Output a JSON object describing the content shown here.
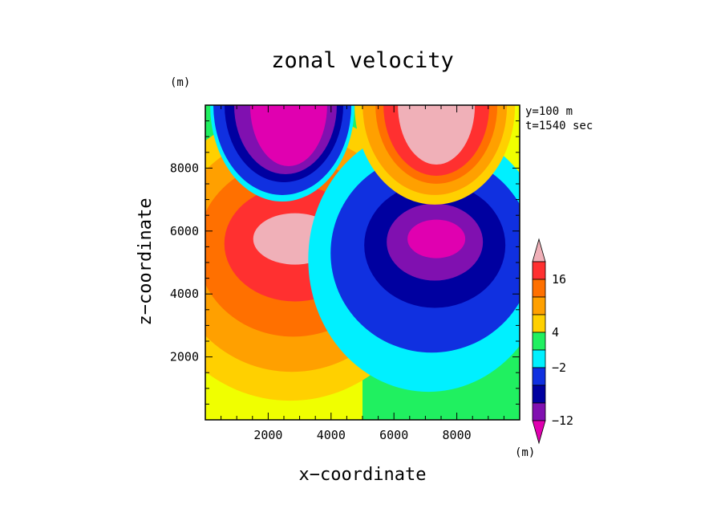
{
  "chart_data": {
    "type": "heatmap",
    "title": "zonal velocity",
    "xlabel": "x−coordinate",
    "ylabel": "z−coordinate",
    "xunit": "(m)",
    "yunit": "(m)",
    "xlim": [
      0,
      10000
    ],
    "ylim": [
      0,
      10000
    ],
    "xticks": [
      2000,
      4000,
      6000,
      8000
    ],
    "xtick_labels": [
      "2000",
      "4000",
      "6000",
      "8000"
    ],
    "yticks": [
      2000,
      4000,
      6000,
      8000
    ],
    "ytick_labels": [
      "2000",
      "4000",
      "6000",
      "8000"
    ],
    "annotations": [
      "y=100  m",
      "t=1540  sec"
    ],
    "colorbar": {
      "unit": "(m)",
      "levels": [
        {
          "color": "#f0b0b8"
        },
        {
          "color": "#ff3030"
        },
        {
          "color": "#ff7000"
        },
        {
          "color": "#ffa000"
        },
        {
          "color": "#ffd000"
        },
        {
          "color": "#20f060"
        },
        {
          "color": "#00f0ff"
        },
        {
          "color": "#1030e0"
        },
        {
          "color": "#0000a0"
        },
        {
          "color": "#8010b0"
        },
        {
          "color": "#e000b0"
        }
      ],
      "labels": [
        {
          "text": "16",
          "after_level": 1
        },
        {
          "text": "4",
          "after_level": 4
        },
        {
          "text": "−2",
          "after_level": 6
        },
        {
          "text": "−12",
          "after_level": 9
        }
      ]
    },
    "palette": {
      "left_background": "#f0ff00",
      "right_background": "#20f060",
      "band_colors": [
        "#ffd000",
        "#ffa000",
        "#ff7000",
        "#ff3030",
        "#f0b0b8"
      ],
      "neg_band_colors": [
        "#00f0ff",
        "#1030e0",
        "#0000a0",
        "#8010b0",
        "#e000b0"
      ]
    }
  }
}
